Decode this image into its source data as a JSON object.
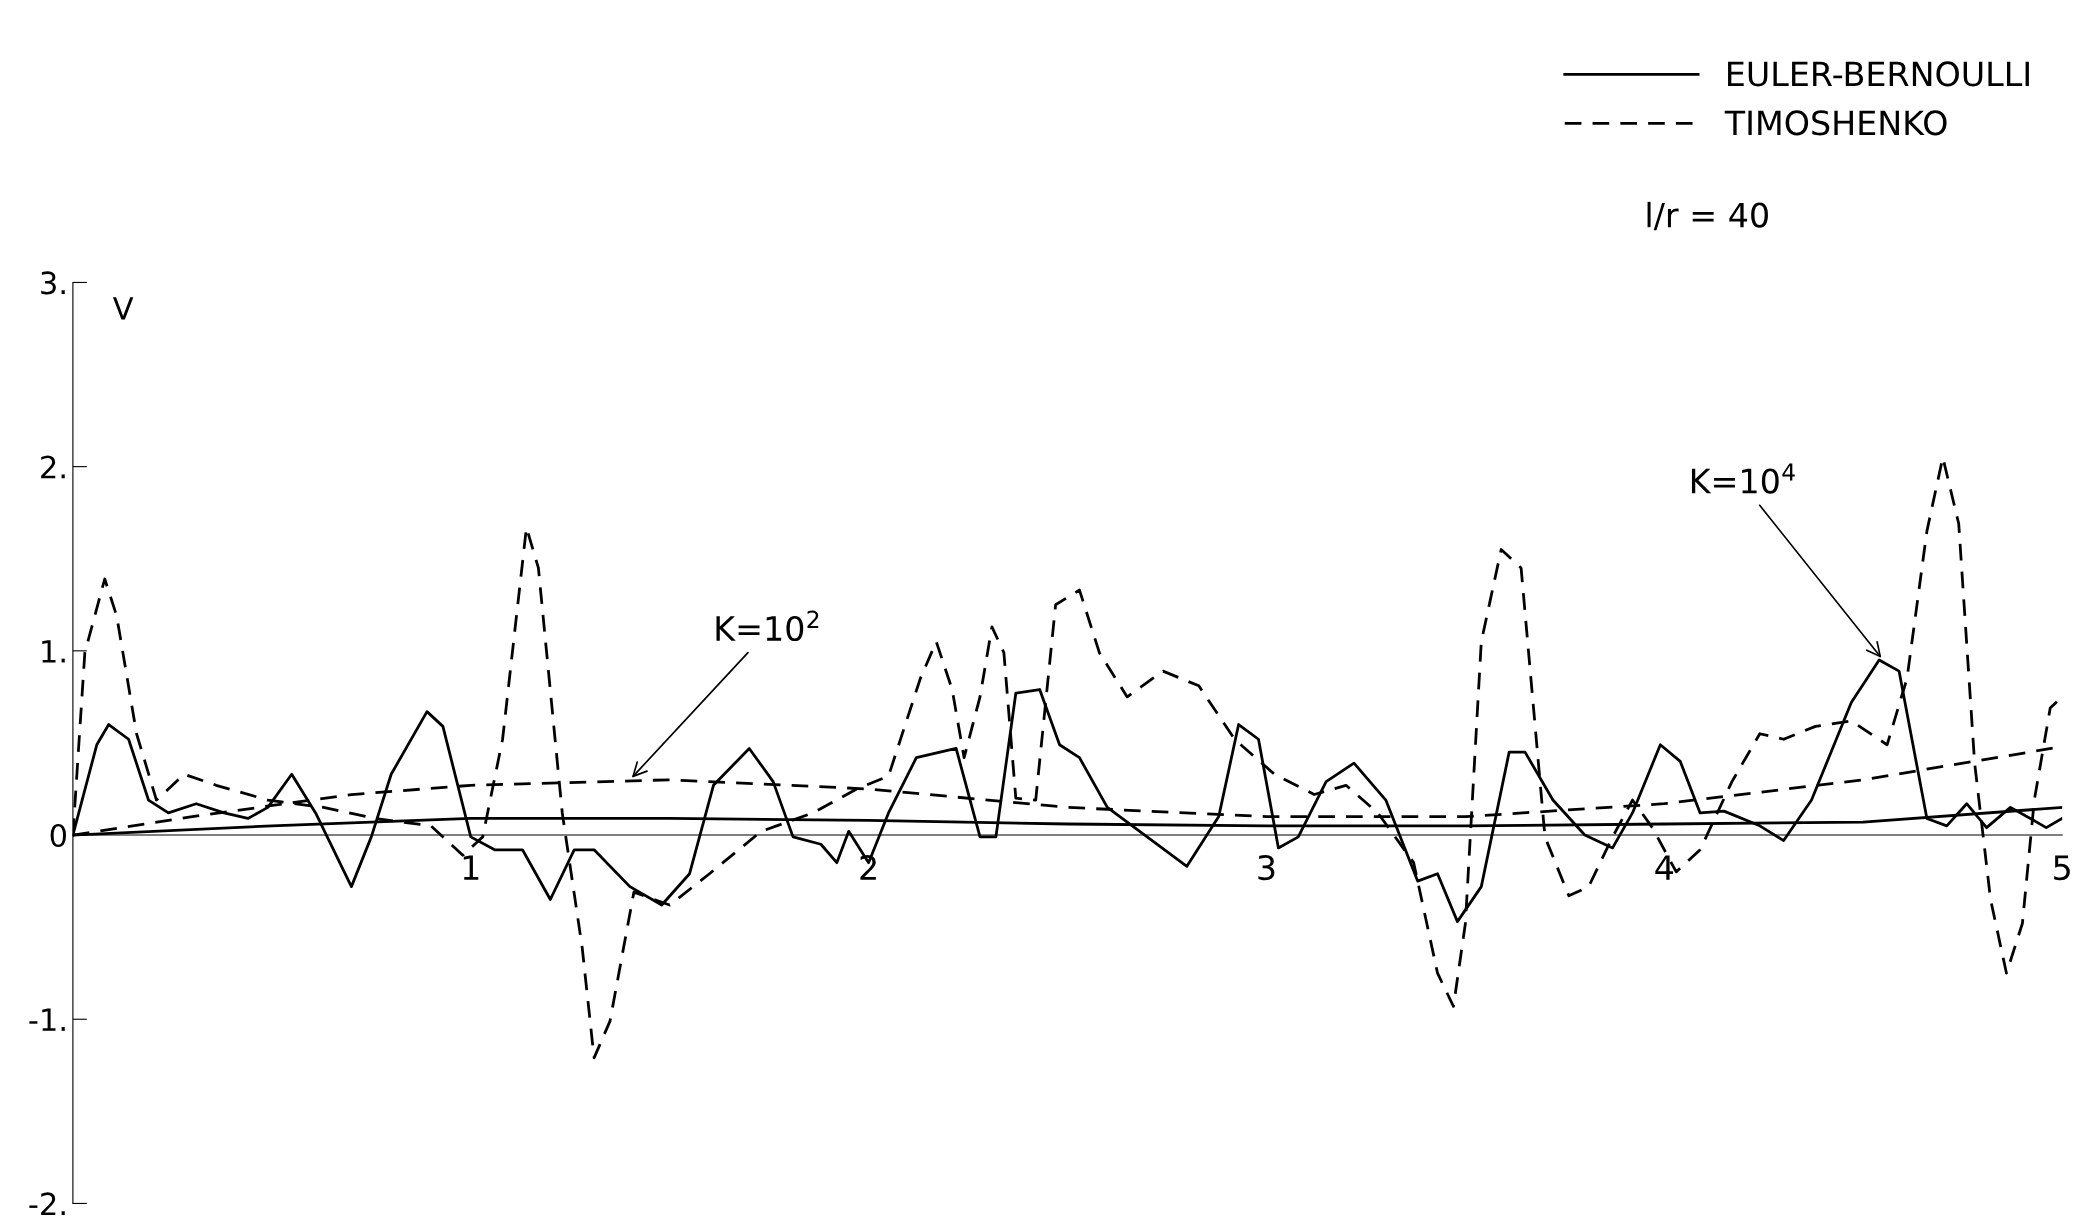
{
  "chart_data": {
    "type": "line",
    "ylabel": "V",
    "legend": "top right",
    "grid": false,
    "xlim": [
      0,
      5
    ],
    "xticks": [
      1,
      2,
      3,
      4,
      5
    ],
    "ylim": [
      -2,
      3
    ],
    "yticks": [
      {
        "value": 3,
        "label": "3."
      },
      {
        "value": 2,
        "label": "2."
      },
      {
        "value": 1,
        "label": "1."
      },
      0,
      {
        "value": -1,
        "label": "-1."
      },
      {
        "value": -2,
        "label": "-2."
      }
    ],
    "annotations": [
      "l/r = 40",
      {
        "text": "K=10$^{2}$",
        "x": 1.4,
        "y": 0.3
      },
      {
        "text": "K=10$^{4}$",
        "x": 4.55,
        "y": 0.95
      }
    ],
    "series": [
      {
        "name": "EULER-BERNOULLI",
        "color": "#000000",
        "line_style": "solid",
        "x": [
          0,
          0.06,
          0.09,
          0.14,
          0.19,
          0.24,
          0.31,
          0.38,
          0.44,
          0.49,
          0.55,
          0.61,
          0.7,
          0.75,
          0.8,
          0.89,
          0.93,
          1.0,
          1.06,
          1.13,
          1.2,
          1.26,
          1.31,
          1.4,
          1.48,
          1.55,
          1.61,
          1.7,
          1.76,
          1.81,
          1.88,
          1.92,
          1.95,
          2.0,
          2.05,
          2.12,
          2.22,
          2.28,
          2.32,
          2.37,
          2.43,
          2.48,
          2.53,
          2.6,
          2.7,
          2.8,
          2.88,
          2.93,
          2.98,
          3.03,
          3.08,
          3.15,
          3.22,
          3.3,
          3.38,
          3.43,
          3.48,
          3.54,
          3.61,
          3.65,
          3.72,
          3.8,
          3.87,
          3.92,
          3.99,
          4.04,
          4.09,
          4.15,
          4.24,
          4.3,
          4.37,
          4.47,
          4.54,
          4.59,
          4.66,
          4.71,
          4.76,
          4.81,
          4.87,
          4.92,
          4.96,
          5.0
        ],
        "values": [
          0,
          0.49,
          0.6,
          0.52,
          0.19,
          0.12,
          0.17,
          0.12,
          0.09,
          0.15,
          0.33,
          0.12,
          -0.28,
          -0.01,
          0.33,
          0.67,
          0.59,
          -0.01,
          -0.08,
          -0.08,
          -0.35,
          -0.08,
          -0.08,
          -0.28,
          -0.38,
          -0.21,
          0.27,
          0.47,
          0.29,
          -0.01,
          -0.05,
          -0.15,
          0.02,
          -0.15,
          0.12,
          0.42,
          0.47,
          -0.01,
          -0.01,
          0.77,
          0.79,
          0.49,
          0.42,
          0.15,
          -0.01,
          -0.17,
          0.1,
          0.6,
          0.52,
          -0.07,
          -0.01,
          0.29,
          0.39,
          0.19,
          -0.25,
          -0.21,
          -0.47,
          -0.28,
          0.45,
          0.45,
          0.19,
          0.0,
          -0.07,
          0.12,
          0.49,
          0.4,
          0.12,
          0.13,
          0.05,
          -0.03,
          0.19,
          0.72,
          0.95,
          0.89,
          0.09,
          0.05,
          0.17,
          0.04,
          0.15,
          0.09,
          0.04,
          0.09
        ]
      },
      {
        "name": "TIMOSHENKO",
        "color": "#000000",
        "line_style": "dashed",
        "x": [
          0,
          0.03,
          0.08,
          0.11,
          0.16,
          0.21,
          0.28,
          0.36,
          0.49,
          0.63,
          0.76,
          0.9,
          0.98,
          1.03,
          1.08,
          1.14,
          1.17,
          1.23,
          1.28,
          1.31,
          1.35,
          1.41,
          1.5,
          1.6,
          1.73,
          1.86,
          1.97,
          2.05,
          2.13,
          2.17,
          2.21,
          2.24,
          2.28,
          2.31,
          2.34,
          2.37,
          2.42,
          2.47,
          2.53,
          2.58,
          2.65,
          2.74,
          2.83,
          2.92,
          3.02,
          3.12,
          3.2,
          3.28,
          3.37,
          3.43,
          3.47,
          3.5,
          3.54,
          3.59,
          3.64,
          3.7,
          3.76,
          3.81,
          3.87,
          3.92,
          3.97,
          4.03,
          4.09,
          4.17,
          4.24,
          4.3,
          4.38,
          4.47,
          4.56,
          4.61,
          4.66,
          4.7,
          4.74,
          4.78,
          4.82,
          4.86,
          4.9,
          4.93,
          4.97,
          5.0
        ],
        "values": [
          0,
          0.99,
          1.39,
          1.19,
          0.55,
          0.19,
          0.33,
          0.27,
          0.19,
          0.15,
          0.09,
          0.05,
          -0.11,
          -0.01,
          0.52,
          1.67,
          1.45,
          0.12,
          -0.61,
          -1.21,
          -1.01,
          -0.31,
          -0.38,
          -0.21,
          0.02,
          0.12,
          0.25,
          0.32,
          0.85,
          1.05,
          0.79,
          0.42,
          0.75,
          1.13,
          0.99,
          0.2,
          0.19,
          1.25,
          1.33,
          0.99,
          0.75,
          0.89,
          0.81,
          0.52,
          0.33,
          0.22,
          0.27,
          0.12,
          -0.15,
          -0.75,
          -0.93,
          -0.48,
          1.05,
          1.55,
          1.45,
          -0.01,
          -0.33,
          -0.28,
          -0.01,
          0.19,
          0.04,
          -0.2,
          -0.08,
          0.29,
          0.55,
          0.52,
          0.59,
          0.62,
          0.49,
          0.85,
          1.65,
          2.05,
          1.69,
          0.39,
          -0.35,
          -0.75,
          -0.48,
          0.19,
          0.69,
          0.75
        ]
      },
      {
        "color": "#000000",
        "line_style": "solid",
        "x": [
          0,
          0.5,
          1,
          1.5,
          2,
          2.5,
          3,
          3.5,
          4,
          4.5,
          5
        ],
        "values": [
          0,
          0.05,
          0.09,
          0.09,
          0.08,
          0.06,
          0.05,
          0.05,
          0.06,
          0.07,
          0.15
        ]
      },
      {
        "color": "#000000",
        "line_style": "dashed",
        "x": [
          0,
          0.3,
          0.7,
          1,
          1.5,
          2,
          2.5,
          3,
          3.5,
          4,
          4.5,
          5
        ],
        "values": [
          0,
          0.1,
          0.22,
          0.27,
          0.3,
          0.25,
          0.15,
          0.1,
          0.1,
          0.17,
          0.3,
          0.48
        ]
      }
    ]
  }
}
